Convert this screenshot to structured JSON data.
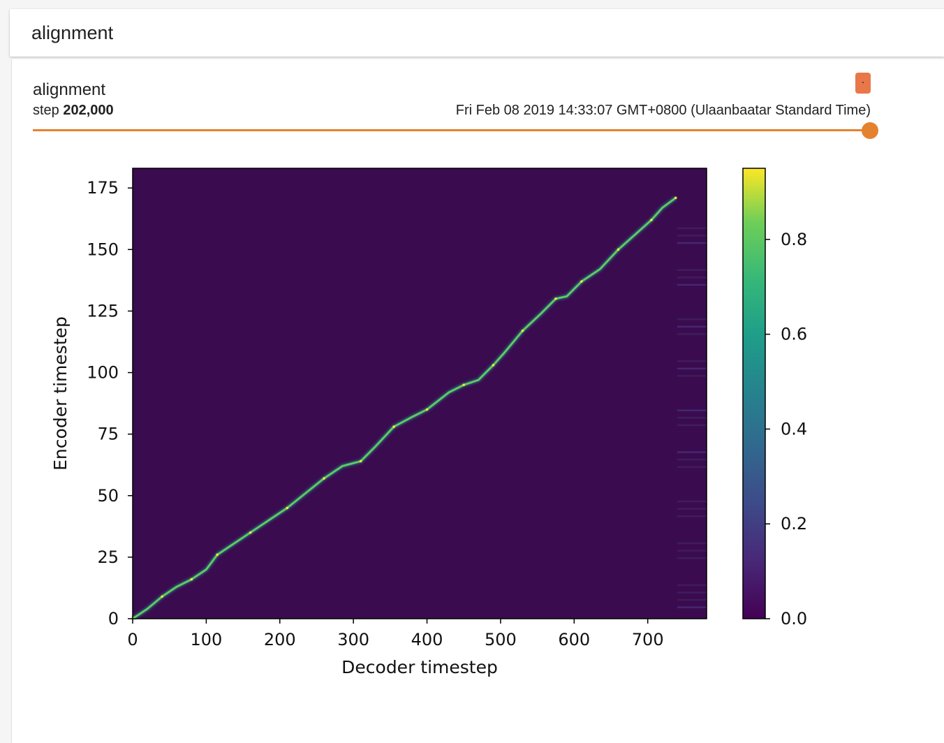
{
  "section": {
    "title": "alignment"
  },
  "card": {
    "title": "alignment",
    "step_label": "step",
    "step_value": "202,000",
    "wall_time": "Fri Feb 08 2019 14:33:07 GMT+0800 (Ulaanbaatar Standard Time)",
    "menu_glyph": "."
  },
  "slider": {
    "value_fraction": 1.0,
    "color": "#e5822f"
  },
  "chart_data": {
    "type": "heatmap",
    "xlabel": "Decoder timestep",
    "ylabel": "Encoder timestep",
    "xlim": [
      0,
      780
    ],
    "ylim": [
      0,
      183
    ],
    "x_ticks": [
      0,
      100,
      200,
      300,
      400,
      500,
      600,
      700
    ],
    "y_ticks": [
      0,
      25,
      50,
      75,
      100,
      125,
      150,
      175
    ],
    "colormap": "viridis",
    "colorbar_range": [
      0,
      0.95
    ],
    "colorbar_ticks": [
      "0.0",
      "0.2",
      "0.4",
      "0.6",
      "0.8"
    ],
    "colorbar_tick_values": [
      0.0,
      0.2,
      0.4,
      0.6,
      0.8
    ],
    "alignment_path": [
      [
        0,
        0
      ],
      [
        20,
        4
      ],
      [
        40,
        9
      ],
      [
        60,
        13
      ],
      [
        80,
        16
      ],
      [
        100,
        20
      ],
      [
        115,
        26
      ],
      [
        140,
        31
      ],
      [
        160,
        35
      ],
      [
        185,
        40
      ],
      [
        210,
        45
      ],
      [
        235,
        51
      ],
      [
        260,
        57
      ],
      [
        285,
        62
      ],
      [
        310,
        64
      ],
      [
        330,
        70
      ],
      [
        355,
        78
      ],
      [
        380,
        82
      ],
      [
        400,
        85
      ],
      [
        430,
        92
      ],
      [
        450,
        95
      ],
      [
        470,
        97
      ],
      [
        490,
        103
      ],
      [
        505,
        108
      ],
      [
        530,
        117
      ],
      [
        555,
        124
      ],
      [
        575,
        130
      ],
      [
        590,
        131
      ],
      [
        610,
        137
      ],
      [
        635,
        142
      ],
      [
        660,
        150
      ],
      [
        690,
        158
      ],
      [
        705,
        162
      ],
      [
        720,
        167
      ],
      [
        738,
        171
      ]
    ]
  }
}
